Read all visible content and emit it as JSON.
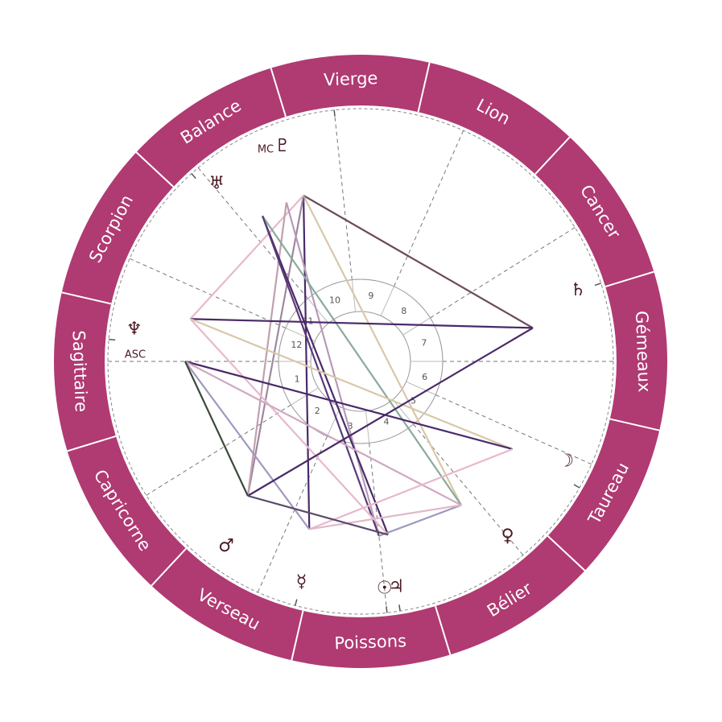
{
  "colors": {
    "ring": "#b03a72",
    "ring_divider": "#ffffff",
    "cusp_line": "#777777",
    "inner_circle": "#999999",
    "glyph": "#4a1a22"
  },
  "signs": [
    {
      "key": "vierge",
      "label": "Vierge",
      "angle": 92
    },
    {
      "key": "lion",
      "label": "Lion",
      "angle": 62
    },
    {
      "key": "cancer",
      "label": "Cancer",
      "angle": 32
    },
    {
      "key": "gemeaux",
      "label": "Gémeaux",
      "angle": 2
    },
    {
      "key": "taureau",
      "label": "Taureau",
      "angle": -28
    },
    {
      "key": "belier",
      "label": "Bélier",
      "angle": -58
    },
    {
      "key": "poissons",
      "label": "Poissons",
      "angle": -88
    },
    {
      "key": "verseau",
      "label": "Verseau",
      "angle": -118
    },
    {
      "key": "capricorne",
      "label": "Capricorne",
      "angle": -148
    },
    {
      "key": "sagittaire",
      "label": "Sagittaire",
      "angle": -178
    },
    {
      "key": "scorpion",
      "label": "Scorpion",
      "angle": 152
    },
    {
      "key": "balance",
      "label": "Balance",
      "angle": 122
    }
  ],
  "sign_boundaries": [
    77,
    47,
    17,
    -13,
    -43,
    -73,
    -103,
    -133,
    -163,
    167,
    137,
    107
  ],
  "houses": [
    {
      "number": "1",
      "cusp": 180,
      "label_angle": 196
    },
    {
      "number": "2",
      "cusp": 212,
      "label_angle": 229
    },
    {
      "number": "3",
      "cusp": 246,
      "label_angle": 261
    },
    {
      "number": "4",
      "cusp": 276,
      "label_angle": 293
    },
    {
      "number": "5",
      "cusp": 310,
      "label_angle": 323
    },
    {
      "number": "6",
      "cusp": 336,
      "label_angle": 346
    },
    {
      "number": "7",
      "cusp": 0,
      "label_angle": 16
    },
    {
      "number": "8",
      "cusp": 32,
      "label_angle": 49
    },
    {
      "number": "9",
      "cusp": 66,
      "label_angle": 81
    },
    {
      "number": "10",
      "cusp": 96,
      "label_angle": 113
    },
    {
      "number": "11",
      "cusp": 130,
      "label_angle": 143
    },
    {
      "number": "12",
      "cusp": 156,
      "label_angle": 166
    }
  ],
  "axes": {
    "asc_label": "ASC",
    "mc_label": "MC"
  },
  "planets": [
    {
      "key": "pluto",
      "glyph": "♇",
      "angle": 110
    },
    {
      "key": "uranus",
      "glyph": "♅",
      "angle": 129
    },
    {
      "key": "neptune",
      "glyph": "♆",
      "angle": 172
    },
    {
      "key": "saturn",
      "glyph": "♄",
      "angle": 18
    },
    {
      "key": "moon",
      "glyph": "☽",
      "angle": -26
    },
    {
      "key": "venus",
      "glyph": "♀",
      "angle": -50
    },
    {
      "key": "sun",
      "glyph": "☉",
      "angle": -84
    },
    {
      "key": "jupiter",
      "glyph": "♃",
      "angle": -81
    },
    {
      "key": "mercury",
      "glyph": "☿",
      "angle": -105
    },
    {
      "key": "mars",
      "glyph": "♂",
      "angle": -126
    }
  ],
  "aspect_points": {
    "A": {
      "angle": 109
    },
    "B": {
      "angle": 115
    },
    "C": {
      "angle": 124
    },
    "D": {
      "angle": 166
    },
    "E": {
      "angle": 180
    },
    "F": {
      "angle": 11
    },
    "G": {
      "angle": -30
    },
    "H": {
      "angle": -55
    },
    "I": {
      "angle": -81
    },
    "J": {
      "angle": -84
    },
    "K": {
      "angle": -107
    },
    "L": {
      "angle": -130
    }
  },
  "aspects": [
    {
      "from": "A",
      "to": "F",
      "color": "#6b4a5a"
    },
    {
      "from": "A",
      "to": "H",
      "color": "#d8c8a8"
    },
    {
      "from": "A",
      "to": "K",
      "color": "#4a2a6a"
    },
    {
      "from": "A",
      "to": "L",
      "color": "#a088a0"
    },
    {
      "from": "A",
      "to": "D",
      "color": "#e8b8cc"
    },
    {
      "from": "B",
      "to": "J",
      "color": "#b89ab8"
    },
    {
      "from": "B",
      "to": "L",
      "color": "#c0a0b0"
    },
    {
      "from": "C",
      "to": "I",
      "color": "#4a2a6a"
    },
    {
      "from": "C",
      "to": "H",
      "color": "#8aaa9a"
    },
    {
      "from": "C",
      "to": "J",
      "color": "#5a3a7a"
    },
    {
      "from": "D",
      "to": "F",
      "color": "#4a2a6a"
    },
    {
      "from": "D",
      "to": "G",
      "color": "#d8c8a8"
    },
    {
      "from": "D",
      "to": "I",
      "color": "#e8b8cc"
    },
    {
      "from": "E",
      "to": "G",
      "color": "#4a2a6a"
    },
    {
      "from": "E",
      "to": "H",
      "color": "#d0a8c0"
    },
    {
      "from": "E",
      "to": "K",
      "color": "#a098c0"
    },
    {
      "from": "E",
      "to": "L",
      "color": "#3a4a3a"
    },
    {
      "from": "F",
      "to": "L",
      "color": "#4a2a6a"
    },
    {
      "from": "G",
      "to": "K",
      "color": "#e8b8cc"
    },
    {
      "from": "H",
      "to": "J",
      "color": "#a098c0"
    },
    {
      "from": "H",
      "to": "K",
      "color": "#e0b8c8"
    },
    {
      "from": "I",
      "to": "L",
      "color": "#5a4a6a"
    }
  ]
}
